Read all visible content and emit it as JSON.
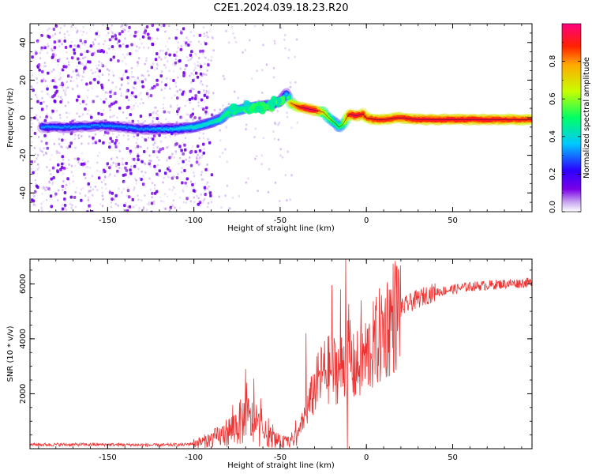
{
  "figure": {
    "title": "C2E1.2024.039.18.23.R20"
  },
  "chart_data": [
    {
      "type": "heatmap",
      "xlabel": "Height of straight line (km)",
      "ylabel": "Frequency (Hz)",
      "xlim": [
        -195,
        96
      ],
      "ylim": [
        -50,
        50
      ],
      "xticks": [
        -150,
        -100,
        -50,
        0,
        50
      ],
      "yticks": [
        -40,
        -20,
        0,
        20,
        40
      ],
      "colorbar": {
        "label": "Normalized spectral amplitude",
        "range": [
          0,
          1
        ],
        "ticks": [
          "0.0",
          "0.2",
          "0.4",
          "0.6",
          "0.8"
        ],
        "stops": [
          "#ffffff",
          "#c9a8f0",
          "#7a00e6",
          "#2b00ff",
          "#00c8ff",
          "#00ff66",
          "#c8ff00",
          "#ffaa00",
          "#ff2200",
          "#ff0080"
        ]
      },
      "ridge": {
        "x": [
          -188,
          -170,
          -152,
          -130,
          -110,
          -100,
          -92,
          -85,
          -80,
          -75,
          -70,
          -65,
          -60,
          -55,
          -50,
          -46,
          -44,
          -40,
          -35,
          -30,
          -25,
          -22,
          -18,
          -16,
          -14,
          -10,
          -6,
          -2,
          0,
          5,
          10,
          20,
          30,
          50,
          70,
          96
        ],
        "y": [
          -5,
          -5,
          -4,
          -6,
          -6,
          -5,
          -3,
          -1,
          3,
          4,
          5,
          6,
          6,
          7,
          9,
          13,
          8,
          6,
          5,
          4,
          3,
          0,
          -3,
          -5,
          -4,
          2,
          1,
          2,
          0,
          -1,
          -1,
          0,
          -1,
          -1,
          -1,
          -1
        ],
        "amplitude": [
          0.3,
          0.3,
          0.3,
          0.3,
          0.35,
          0.4,
          0.4,
          0.45,
          0.5,
          0.5,
          0.5,
          0.5,
          0.45,
          0.45,
          0.4,
          0.35,
          0.75,
          0.85,
          0.95,
          0.95,
          0.7,
          0.6,
          0.5,
          0.5,
          0.55,
          0.9,
          0.95,
          0.9,
          0.85,
          0.9,
          0.9,
          0.9,
          0.92,
          0.92,
          0.92,
          0.88
        ]
      },
      "noise_region": {
        "x_range": [
          -195,
          -98
        ],
        "y_range": [
          -50,
          50
        ]
      }
    },
    {
      "type": "line",
      "xlabel": "Height of straight line (km)",
      "ylabel": "SNR (10 * v/v)",
      "xlim": [
        -195,
        96
      ],
      "ylim": [
        0,
        6900
      ],
      "xticks": [
        -150,
        -100,
        -50,
        0,
        50
      ],
      "yticks": [
        2000,
        4000,
        6000
      ],
      "color": "#ee3333",
      "envelope": {
        "x": [
          -195,
          -150,
          -120,
          -105,
          -95,
          -85,
          -78,
          -70,
          -65,
          -60,
          -55,
          -50,
          -45,
          -40,
          -35,
          -30,
          -25,
          -20,
          -15,
          -12,
          -10,
          -8,
          -5,
          0,
          5,
          10,
          15,
          20,
          25,
          30,
          35,
          40,
          50,
          60,
          70,
          80,
          96
        ],
        "y": [
          150,
          150,
          130,
          150,
          250,
          450,
          700,
          1100,
          900,
          600,
          400,
          250,
          250,
          450,
          1300,
          2200,
          2800,
          2900,
          2900,
          3200,
          3700,
          2900,
          3000,
          3400,
          3800,
          4300,
          4800,
          5100,
          5300,
          5450,
          5600,
          5700,
          5800,
          5900,
          5950,
          6000,
          6050
        ]
      },
      "spikes": [
        {
          "x": -70,
          "y": 2900
        },
        {
          "x": -35,
          "y": 4200
        },
        {
          "x": -20,
          "y": 5950
        },
        {
          "x": -15,
          "y": 5800
        },
        {
          "x": -12,
          "y": 6900
        },
        {
          "x": -11,
          "y": 0
        },
        {
          "x": -3,
          "y": 5400
        }
      ]
    }
  ]
}
